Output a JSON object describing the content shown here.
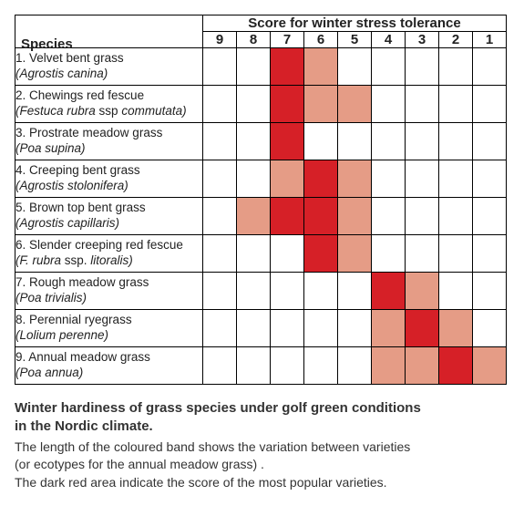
{
  "header_title": "Score for winter stress tolerance",
  "species_header": "Species",
  "score_columns": [
    "9",
    "8",
    "7",
    "6",
    "5",
    "4",
    "3",
    "2",
    "1"
  ],
  "colors": {
    "empty": "#ffffff",
    "light": "#e59c86",
    "dark": "#d62027",
    "border": "#000000",
    "text": "#222222"
  },
  "legend_map": {
    "0": "empty",
    "1": "light",
    "2": "dark"
  },
  "rows": [
    {
      "common": "1. Velvet bent grass",
      "latin_html": "(Agrostis canina)",
      "cells": [
        0,
        0,
        2,
        1,
        0,
        0,
        0,
        0,
        0
      ]
    },
    {
      "common": "2. Chewings red fescue",
      "latin_html": "(Festuca rubra <span class=\"nonital\">ssp</span> commutata)",
      "cells": [
        0,
        0,
        2,
        1,
        1,
        0,
        0,
        0,
        0
      ]
    },
    {
      "common": "3. Prostrate meadow grass",
      "latin_html": "(Poa supina)",
      "cells": [
        0,
        0,
        2,
        0,
        0,
        0,
        0,
        0,
        0
      ]
    },
    {
      "common": "4. Creeping bent grass",
      "latin_html": "(Agrostis stolonifera)",
      "cells": [
        0,
        0,
        1,
        2,
        1,
        0,
        0,
        0,
        0
      ]
    },
    {
      "common": "5. Brown top bent grass",
      "latin_html": "(Agrostis capillaris)",
      "cells": [
        0,
        1,
        2,
        2,
        1,
        0,
        0,
        0,
        0
      ]
    },
    {
      "common": "6. Slender creeping red fescue",
      "latin_html": "(F. rubra <span class=\"nonital\">ssp.</span> litoralis)",
      "cells": [
        0,
        0,
        0,
        2,
        1,
        0,
        0,
        0,
        0
      ]
    },
    {
      "common": "7. Rough meadow grass",
      "latin_html": "(Poa trivialis)",
      "cells": [
        0,
        0,
        0,
        0,
        0,
        2,
        1,
        0,
        0
      ]
    },
    {
      "common": "8. Perennial ryegrass",
      "latin_html": "(Lolium perenne)",
      "cells": [
        0,
        0,
        0,
        0,
        0,
        1,
        2,
        1,
        0
      ]
    },
    {
      "common": "9. Annual meadow grass",
      "latin_html": "(Poa annua)",
      "cells": [
        0,
        0,
        0,
        0,
        0,
        1,
        1,
        2,
        1
      ]
    }
  ],
  "caption": {
    "line1": "Winter hardiness of grass species under golf green conditions",
    "line2": "in the Nordic climate.",
    "line3": "The length of the coloured band shows the variation between varieties",
    "line4": "(or ecotypes for the annual meadow grass) .",
    "line5": "The dark red area indicate the score of the most popular varieties."
  }
}
